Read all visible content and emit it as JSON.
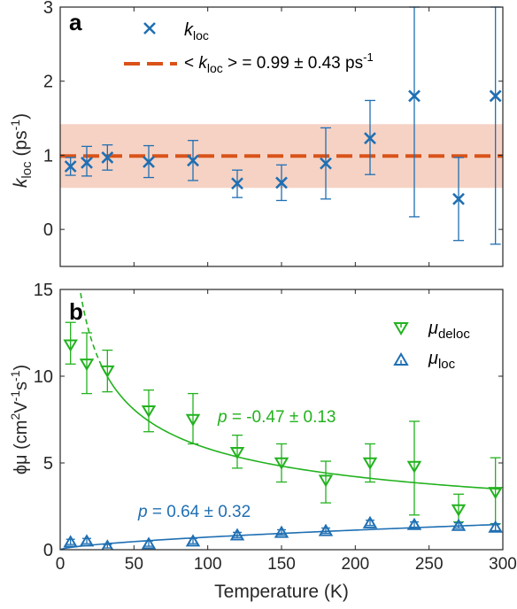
{
  "chart_data": [
    {
      "type": "scatter",
      "panel_label": "a",
      "xlim": [
        0,
        300
      ],
      "ylim": [
        -0.5,
        3
      ],
      "x_ticks": [
        "0",
        "50",
        "100",
        "150",
        "200",
        "250",
        "300"
      ],
      "y_ticks": [
        "0",
        "1",
        "2",
        "3"
      ],
      "ylabel": {
        "main": "k",
        "sub": "loc",
        "unit": " (ps",
        "sup": "-1",
        "close": ")"
      },
      "legend": {
        "position": "top-left",
        "marker_label": {
          "main": "k",
          "sub": "loc"
        },
        "line_label": {
          "prefix": "< ",
          "main": "k",
          "sub": "loc",
          "mid": " > =  0.99 ± 0.43 ps",
          "sup": "-1"
        }
      },
      "mean_value": 0.99,
      "band": [
        0.56,
        1.42
      ],
      "colors": {
        "points": "#1f6fb3",
        "mean_line": "#d95319",
        "band": "#f6d2c4"
      },
      "series": [
        {
          "x": [
            7,
            18,
            32,
            60,
            90,
            120,
            150,
            180,
            210,
            240,
            270,
            295
          ],
          "y": [
            0.85,
            0.9,
            0.97,
            0.91,
            0.93,
            0.62,
            0.63,
            0.89,
            1.23,
            1.8,
            0.41,
            1.8
          ],
          "err_low": [
            0.73,
            0.72,
            0.8,
            0.7,
            0.66,
            0.43,
            0.39,
            0.41,
            0.74,
            0.17,
            -0.15,
            -0.2
          ],
          "err_high": [
            0.97,
            1.12,
            1.14,
            1.13,
            1.2,
            0.8,
            0.87,
            1.37,
            1.74,
            3.0,
            0.97,
            3.0
          ]
        }
      ]
    },
    {
      "type": "scatter",
      "panel_label": "b",
      "xlim": [
        0,
        300
      ],
      "ylim": [
        0,
        15
      ],
      "x_ticks": [
        "0",
        "50",
        "100",
        "150",
        "200",
        "250",
        "300"
      ],
      "y_ticks": [
        "0",
        "5",
        "10",
        "15"
      ],
      "xlabel": "Temperature (K)",
      "ylabel": {
        "main": "ϕμ (cm",
        "s1": "2",
        "m2": "V",
        "s2": "-1",
        "m3": "s",
        "s3": "-1",
        "close": ")"
      },
      "legend": {
        "position": "top-right",
        "deloc": {
          "main": "μ",
          "sub": "deloc"
        },
        "loc": {
          "main": "μ",
          "sub": "loc"
        }
      },
      "annotations": {
        "deloc_fit": {
          "p": "p",
          "text": " = -0.47 ± 0.13"
        },
        "loc_fit": {
          "p": "p",
          "text": " = 0.64 ± 0.32"
        }
      },
      "colors": {
        "deloc": "#22b21e",
        "loc": "#1f6fb3"
      },
      "fits": {
        "deloc": {
          "A": 50.8,
          "exponent": -0.47
        },
        "loc": {
          "A": 0.038,
          "exponent": 0.64
        }
      },
      "series": [
        {
          "name": "μdeloc",
          "x": [
            7,
            18,
            32,
            60,
            90,
            120,
            150,
            180,
            210,
            240,
            270,
            295
          ],
          "y": [
            11.8,
            10.7,
            10.3,
            8.0,
            7.5,
            5.6,
            5.0,
            4.0,
            5.0,
            4.8,
            2.3,
            3.3
          ],
          "err_low": [
            10.7,
            9.0,
            9.1,
            6.8,
            6.1,
            4.7,
            3.9,
            2.7,
            3.9,
            2.0,
            1.6,
            1.5
          ],
          "err_high": [
            13.1,
            12.5,
            11.5,
            9.2,
            9.0,
            6.6,
            6.1,
            5.1,
            6.1,
            7.4,
            3.2,
            5.3
          ]
        },
        {
          "name": "μloc",
          "x": [
            7,
            18,
            32,
            60,
            90,
            120,
            150,
            180,
            210,
            240,
            270,
            295
          ],
          "y": [
            0.45,
            0.5,
            0.2,
            0.35,
            0.5,
            0.85,
            1.0,
            1.1,
            1.55,
            1.45,
            1.4,
            1.3
          ],
          "err_low": [
            0.3,
            0.35,
            0.1,
            0.2,
            0.35,
            0.7,
            0.85,
            0.95,
            1.4,
            1.3,
            1.25,
            1.1
          ],
          "err_high": [
            0.6,
            0.65,
            0.3,
            0.5,
            0.65,
            1.0,
            1.15,
            1.25,
            1.7,
            1.6,
            1.55,
            1.5
          ]
        }
      ]
    }
  ]
}
